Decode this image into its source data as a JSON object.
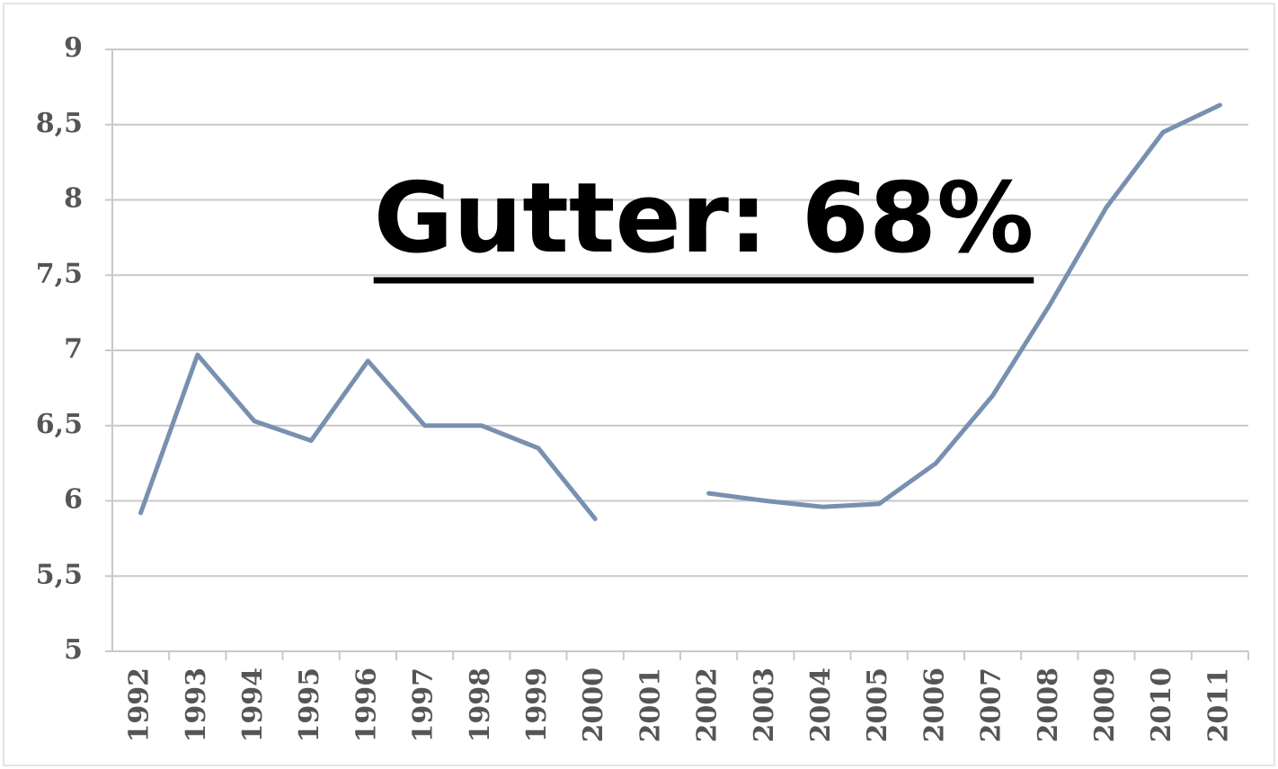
{
  "chart_data": {
    "type": "line",
    "annotation": "Gutter: 68%",
    "categories": [
      "1992",
      "1993",
      "1994",
      "1995",
      "1996",
      "1997",
      "1998",
      "1999",
      "2000",
      "2001",
      "2002",
      "2003",
      "2004",
      "2005",
      "2006",
      "2007",
      "2008",
      "2009",
      "2010",
      "2011"
    ],
    "series": [
      {
        "color": "#7890b0",
        "values": [
          5.92,
          6.97,
          6.53,
          6.4,
          6.93,
          6.5,
          6.5,
          6.35,
          5.88,
          null,
          6.05,
          6.0,
          5.96,
          5.98,
          6.25,
          6.7,
          7.3,
          7.95,
          8.45,
          8.63
        ]
      }
    ],
    "ylim": [
      5,
      9
    ],
    "yticks": [
      5,
      {
        "value": 5.5,
        "label": "5,5"
      },
      6,
      {
        "value": 6.5,
        "label": "6,5"
      },
      7,
      {
        "value": 7.5,
        "label": "7,5"
      },
      8,
      {
        "value": 8.5,
        "label": "8,5"
      },
      9
    ],
    "grid": true
  }
}
